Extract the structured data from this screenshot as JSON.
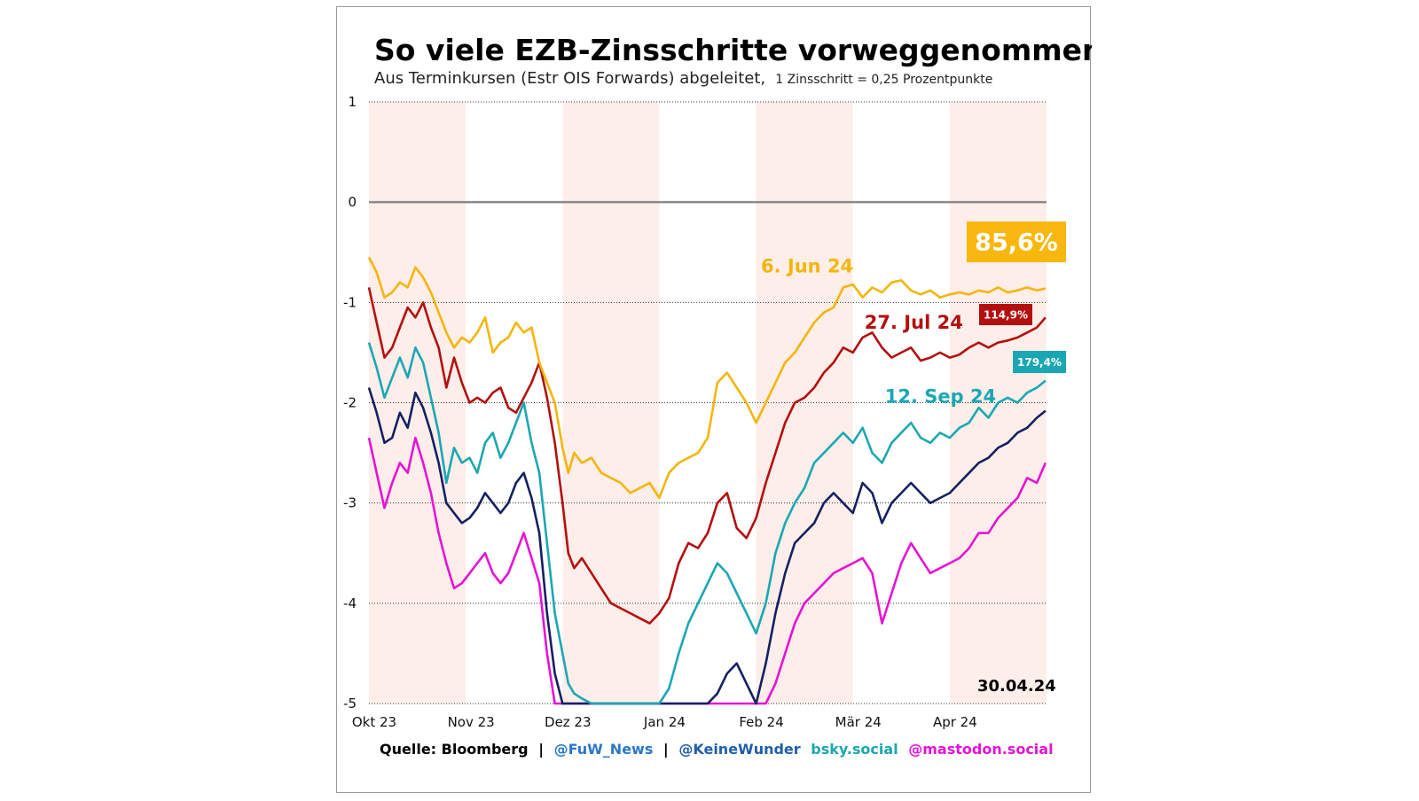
{
  "chart_data": {
    "type": "line",
    "title": "So viele EZB-Zinsschritte vorweggenommen",
    "subtitle": "Aus Terminkursen (Estr OIS Forwards) abgeleitet,",
    "subtitle_note": "1 Zinsschritt = 0,25 Prozentpunkte",
    "ylim": [
      -5,
      1
    ],
    "yticks": [
      {
        "value": 1,
        "label": "1"
      },
      {
        "value": 0,
        "label": "0"
      },
      {
        "value": -1,
        "label": "-1"
      },
      {
        "value": -2,
        "label": "-2"
      },
      {
        "value": -3,
        "label": "-3"
      },
      {
        "value": -4,
        "label": "-4"
      },
      {
        "value": -5,
        "label": "-5"
      }
    ],
    "xlim": [
      0,
      7
    ],
    "xticks": [
      {
        "value": 0,
        "label": "Okt 23"
      },
      {
        "value": 1,
        "label": "Nov 23"
      },
      {
        "value": 2,
        "label": "Dez 23"
      },
      {
        "value": 3,
        "label": "Jan 24"
      },
      {
        "value": 4,
        "label": "Feb 24"
      },
      {
        "value": 5,
        "label": "Mär 24"
      },
      {
        "value": 6,
        "label": "Apr 24"
      }
    ],
    "shaded_months": [
      0,
      2,
      4,
      6
    ],
    "shade_color": "#fdeeea",
    "date_label": "30.04.24",
    "series": [
      {
        "name": "6. Jun 24",
        "color": "#f5b50a",
        "badge": "85,6%",
        "badge_color": "#f8b70f",
        "x": [
          0.0,
          0.08,
          0.16,
          0.24,
          0.32,
          0.4,
          0.48,
          0.56,
          0.64,
          0.72,
          0.8,
          0.88,
          0.96,
          1.04,
          1.12,
          1.2,
          1.28,
          1.36,
          1.44,
          1.52,
          1.6,
          1.68,
          1.76,
          1.84,
          1.92,
          2.0,
          2.06,
          2.12,
          2.2,
          2.3,
          2.4,
          2.5,
          2.6,
          2.7,
          2.8,
          2.9,
          3.0,
          3.1,
          3.2,
          3.3,
          3.4,
          3.5,
          3.6,
          3.7,
          3.8,
          3.9,
          4.0,
          4.1,
          4.2,
          4.3,
          4.4,
          4.5,
          4.6,
          4.7,
          4.8,
          4.9,
          5.0,
          5.1,
          5.2,
          5.3,
          5.4,
          5.5,
          5.6,
          5.7,
          5.8,
          5.9,
          6.0,
          6.1,
          6.2,
          6.3,
          6.4,
          6.5,
          6.6,
          6.7,
          6.8,
          6.9,
          6.99
        ],
        "y": [
          -0.55,
          -0.7,
          -0.95,
          -0.9,
          -0.8,
          -0.85,
          -0.65,
          -0.75,
          -0.9,
          -1.1,
          -1.3,
          -1.45,
          -1.35,
          -1.4,
          -1.3,
          -1.15,
          -1.5,
          -1.4,
          -1.35,
          -1.2,
          -1.3,
          -1.25,
          -1.6,
          -1.8,
          -2.0,
          -2.45,
          -2.7,
          -2.5,
          -2.6,
          -2.55,
          -2.7,
          -2.75,
          -2.8,
          -2.9,
          -2.85,
          -2.8,
          -2.95,
          -2.7,
          -2.6,
          -2.55,
          -2.5,
          -2.35,
          -1.8,
          -1.7,
          -1.85,
          -2.0,
          -2.2,
          -2.0,
          -1.8,
          -1.6,
          -1.5,
          -1.35,
          -1.2,
          -1.1,
          -1.05,
          -0.85,
          -0.82,
          -0.95,
          -0.85,
          -0.9,
          -0.8,
          -0.78,
          -0.88,
          -0.92,
          -0.88,
          -0.95,
          -0.92,
          -0.9,
          -0.92,
          -0.88,
          -0.9,
          -0.85,
          -0.9,
          -0.88,
          -0.85,
          -0.88,
          -0.86
        ]
      },
      {
        "name": "27. Jul 24",
        "color": "#b40f0f",
        "badge": "114,9%",
        "badge_color": "#b40f0f",
        "x": [
          0.0,
          0.08,
          0.16,
          0.24,
          0.32,
          0.4,
          0.48,
          0.56,
          0.64,
          0.72,
          0.8,
          0.88,
          0.96,
          1.04,
          1.12,
          1.2,
          1.28,
          1.36,
          1.44,
          1.52,
          1.6,
          1.68,
          1.76,
          1.84,
          1.92,
          2.0,
          2.06,
          2.12,
          2.2,
          2.3,
          2.4,
          2.5,
          2.6,
          2.7,
          2.8,
          2.9,
          3.0,
          3.1,
          3.2,
          3.3,
          3.4,
          3.5,
          3.6,
          3.7,
          3.8,
          3.9,
          4.0,
          4.1,
          4.2,
          4.3,
          4.4,
          4.5,
          4.6,
          4.7,
          4.8,
          4.9,
          5.0,
          5.1,
          5.2,
          5.3,
          5.4,
          5.5,
          5.6,
          5.7,
          5.8,
          5.9,
          6.0,
          6.1,
          6.2,
          6.3,
          6.4,
          6.5,
          6.6,
          6.7,
          6.8,
          6.9,
          6.99
        ],
        "y": [
          -0.85,
          -1.2,
          -1.55,
          -1.45,
          -1.25,
          -1.05,
          -1.15,
          -1.0,
          -1.25,
          -1.45,
          -1.85,
          -1.55,
          -1.8,
          -2.0,
          -1.95,
          -2.0,
          -1.9,
          -1.85,
          -2.05,
          -2.1,
          -1.95,
          -1.8,
          -1.6,
          -1.95,
          -2.4,
          -3.0,
          -3.5,
          -3.65,
          -3.55,
          -3.7,
          -3.85,
          -4.0,
          -4.05,
          -4.1,
          -4.15,
          -4.2,
          -4.1,
          -3.95,
          -3.6,
          -3.4,
          -3.45,
          -3.3,
          -3.0,
          -2.9,
          -3.25,
          -3.35,
          -3.15,
          -2.8,
          -2.5,
          -2.2,
          -2.0,
          -1.95,
          -1.85,
          -1.7,
          -1.6,
          -1.45,
          -1.5,
          -1.35,
          -1.3,
          -1.45,
          -1.55,
          -1.5,
          -1.45,
          -1.58,
          -1.55,
          -1.5,
          -1.55,
          -1.52,
          -1.45,
          -1.4,
          -1.45,
          -1.4,
          -1.38,
          -1.35,
          -1.3,
          -1.25,
          -1.15
        ]
      },
      {
        "name": "12. Sep 24",
        "color": "#1aa7b3",
        "badge": "179,4%",
        "badge_color": "#1aa7b3",
        "x": [
          0.0,
          0.08,
          0.16,
          0.24,
          0.32,
          0.4,
          0.48,
          0.56,
          0.64,
          0.72,
          0.8,
          0.88,
          0.96,
          1.04,
          1.12,
          1.2,
          1.28,
          1.36,
          1.44,
          1.52,
          1.6,
          1.68,
          1.76,
          1.84,
          1.92,
          2.0,
          2.06,
          2.12,
          2.2,
          2.3,
          2.4,
          2.5,
          2.6,
          2.7,
          2.8,
          2.9,
          3.0,
          3.1,
          3.2,
          3.3,
          3.4,
          3.5,
          3.6,
          3.7,
          3.8,
          3.9,
          4.0,
          4.1,
          4.2,
          4.3,
          4.4,
          4.5,
          4.6,
          4.7,
          4.8,
          4.9,
          5.0,
          5.1,
          5.2,
          5.3,
          5.4,
          5.5,
          5.6,
          5.7,
          5.8,
          5.9,
          6.0,
          6.1,
          6.2,
          6.3,
          6.4,
          6.5,
          6.6,
          6.7,
          6.8,
          6.9,
          6.99
        ],
        "y": [
          -1.4,
          -1.65,
          -1.95,
          -1.75,
          -1.55,
          -1.75,
          -1.45,
          -1.6,
          -1.95,
          -2.3,
          -2.8,
          -2.45,
          -2.6,
          -2.55,
          -2.7,
          -2.4,
          -2.3,
          -2.55,
          -2.4,
          -2.2,
          -2.0,
          -2.4,
          -2.7,
          -3.4,
          -4.1,
          -4.5,
          -4.8,
          -4.9,
          -4.95,
          -5.0,
          -5.0,
          -5.0,
          -5.0,
          -5.0,
          -5.0,
          -5.0,
          -5.0,
          -4.85,
          -4.5,
          -4.2,
          -4.0,
          -3.8,
          -3.6,
          -3.7,
          -3.9,
          -4.1,
          -4.3,
          -4.0,
          -3.5,
          -3.2,
          -3.0,
          -2.85,
          -2.6,
          -2.5,
          -2.4,
          -2.3,
          -2.4,
          -2.25,
          -2.5,
          -2.6,
          -2.4,
          -2.3,
          -2.2,
          -2.35,
          -2.4,
          -2.3,
          -2.35,
          -2.25,
          -2.2,
          -2.05,
          -2.15,
          -2.0,
          -1.95,
          -2.0,
          -1.9,
          -1.85,
          -1.78
        ]
      },
      {
        "name": "",
        "color": "#142062",
        "badge": "",
        "badge_color": "#142062",
        "x": [
          0.0,
          0.08,
          0.16,
          0.24,
          0.32,
          0.4,
          0.48,
          0.56,
          0.64,
          0.72,
          0.8,
          0.88,
          0.96,
          1.04,
          1.12,
          1.2,
          1.28,
          1.36,
          1.44,
          1.52,
          1.6,
          1.68,
          1.76,
          1.84,
          1.92,
          2.0,
          2.06,
          2.12,
          2.2,
          2.3,
          2.4,
          2.5,
          2.6,
          2.7,
          2.8,
          2.9,
          3.0,
          3.1,
          3.2,
          3.3,
          3.4,
          3.5,
          3.6,
          3.7,
          3.8,
          3.9,
          4.0,
          4.1,
          4.2,
          4.3,
          4.4,
          4.5,
          4.6,
          4.7,
          4.8,
          4.9,
          5.0,
          5.1,
          5.2,
          5.3,
          5.4,
          5.5,
          5.6,
          5.7,
          5.8,
          5.9,
          6.0,
          6.1,
          6.2,
          6.3,
          6.4,
          6.5,
          6.6,
          6.7,
          6.8,
          6.9,
          6.99
        ],
        "y": [
          -1.85,
          -2.1,
          -2.4,
          -2.35,
          -2.1,
          -2.25,
          -1.9,
          -2.05,
          -2.3,
          -2.6,
          -3.0,
          -3.1,
          -3.2,
          -3.15,
          -3.05,
          -2.9,
          -3.0,
          -3.1,
          -3.0,
          -2.8,
          -2.7,
          -2.95,
          -3.3,
          -4.1,
          -4.7,
          -5.0,
          -5.0,
          -5.0,
          -5.0,
          -5.0,
          -5.0,
          -5.0,
          -5.0,
          -5.0,
          -5.0,
          -5.0,
          -5.0,
          -5.0,
          -5.0,
          -5.0,
          -5.0,
          -5.0,
          -4.9,
          -4.7,
          -4.6,
          -4.8,
          -5.0,
          -4.6,
          -4.1,
          -3.7,
          -3.4,
          -3.3,
          -3.2,
          -3.0,
          -2.9,
          -3.0,
          -3.1,
          -2.8,
          -2.9,
          -3.2,
          -3.0,
          -2.9,
          -2.8,
          -2.9,
          -3.0,
          -2.95,
          -2.9,
          -2.8,
          -2.7,
          -2.6,
          -2.55,
          -2.45,
          -2.4,
          -2.3,
          -2.25,
          -2.15,
          -2.08
        ]
      },
      {
        "name": "",
        "color": "#e612d6",
        "badge": "",
        "badge_color": "#e612d6",
        "x": [
          0.0,
          0.08,
          0.16,
          0.24,
          0.32,
          0.4,
          0.48,
          0.56,
          0.64,
          0.72,
          0.8,
          0.88,
          0.96,
          1.04,
          1.12,
          1.2,
          1.28,
          1.36,
          1.44,
          1.52,
          1.6,
          1.68,
          1.76,
          1.84,
          1.92,
          2.0,
          2.06,
          2.12,
          2.2,
          2.3,
          2.4,
          2.5,
          2.6,
          2.7,
          2.8,
          2.9,
          3.0,
          3.1,
          3.2,
          3.3,
          3.4,
          3.5,
          3.6,
          3.7,
          3.8,
          3.9,
          4.0,
          4.1,
          4.2,
          4.3,
          4.4,
          4.5,
          4.6,
          4.7,
          4.8,
          4.9,
          5.0,
          5.1,
          5.2,
          5.3,
          5.4,
          5.5,
          5.6,
          5.7,
          5.8,
          5.9,
          6.0,
          6.1,
          6.2,
          6.3,
          6.4,
          6.5,
          6.6,
          6.7,
          6.8,
          6.9,
          6.99
        ],
        "y": [
          -2.35,
          -2.7,
          -3.05,
          -2.8,
          -2.6,
          -2.7,
          -2.35,
          -2.6,
          -2.9,
          -3.3,
          -3.6,
          -3.85,
          -3.8,
          -3.7,
          -3.6,
          -3.5,
          -3.7,
          -3.8,
          -3.7,
          -3.5,
          -3.3,
          -3.55,
          -3.8,
          -4.5,
          -5.0,
          -5.0,
          -5.0,
          -5.0,
          -5.0,
          -5.0,
          -5.0,
          -5.0,
          -5.0,
          -5.0,
          -5.0,
          -5.0,
          -5.0,
          -5.0,
          -5.0,
          -5.0,
          -5.0,
          -5.0,
          -5.0,
          -5.0,
          -5.0,
          -5.0,
          -5.0,
          -5.0,
          -4.8,
          -4.5,
          -4.2,
          -4.0,
          -3.9,
          -3.8,
          -3.7,
          -3.65,
          -3.6,
          -3.55,
          -3.7,
          -4.2,
          -3.9,
          -3.6,
          -3.4,
          -3.55,
          -3.7,
          -3.65,
          -3.6,
          -3.55,
          -3.45,
          -3.3,
          -3.3,
          -3.15,
          -3.05,
          -2.95,
          -2.75,
          -2.8,
          -2.6
        ]
      }
    ]
  },
  "source": {
    "label": "Quelle: Bloomberg",
    "sep1": "|",
    "fuw": "@FuW_News",
    "sep2": "|",
    "keinewunder": "@KeineWunder",
    "bsky": "bsky.social",
    "mastodon": "@mastodon.social"
  },
  "colors": {
    "grid": "#333333",
    "zero_line": "#8a8a8a",
    "fuw": "#2a78c8",
    "keinewunder": "#1f5fa8",
    "bsky": "#1aa7b3",
    "mastodon": "#e612d6"
  }
}
